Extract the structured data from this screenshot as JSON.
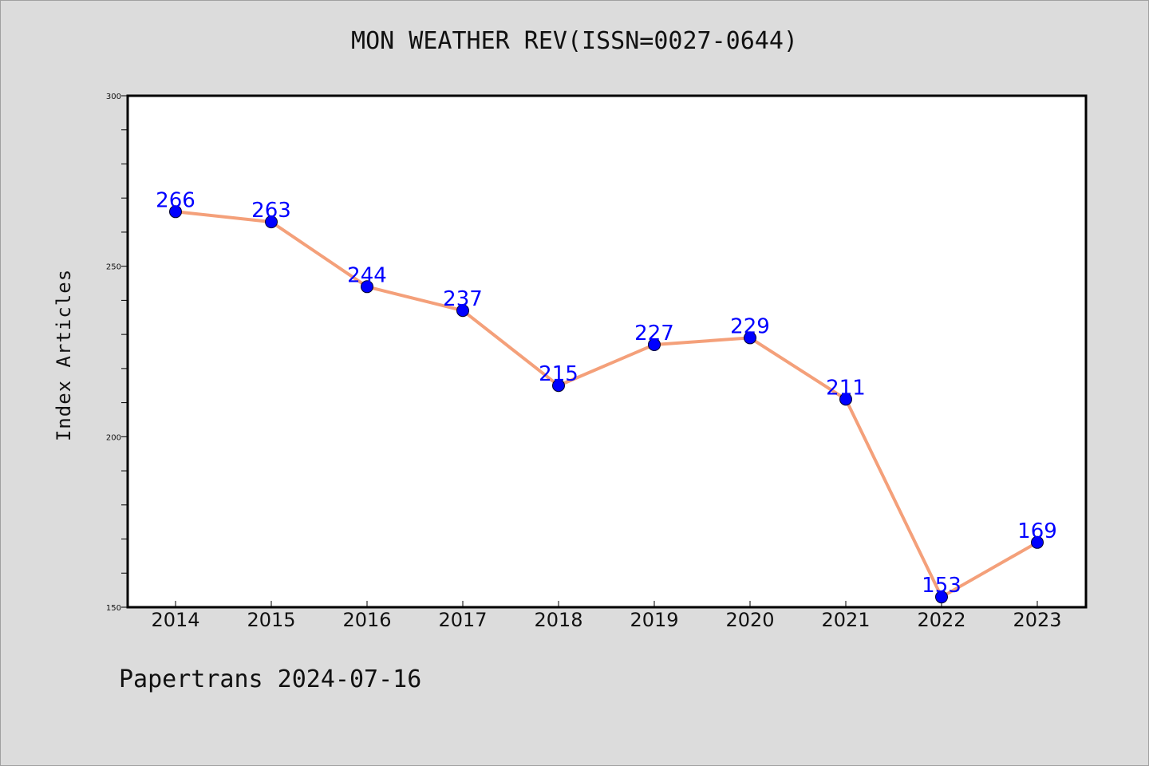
{
  "chart_data": {
    "type": "line",
    "title": "MON WEATHER REV(ISSN=0027-0644)",
    "xlabel": "",
    "ylabel": "Index Articles",
    "categories": [
      "2014",
      "2015",
      "2016",
      "2017",
      "2018",
      "2019",
      "2020",
      "2021",
      "2022",
      "2023"
    ],
    "series": [
      {
        "values": [
          266,
          263,
          244,
          237,
          215,
          227,
          229,
          211,
          153,
          169
        ]
      }
    ],
    "ylim": [
      150,
      300
    ],
    "yticks": [
      150,
      200,
      250,
      300
    ],
    "grid": false,
    "line_color": "#f4a07a",
    "marker_color": "#0000ff",
    "label_color": "#0000ff",
    "plot_background": "#ffffff",
    "page_background": "#dcdcdc"
  },
  "footer": {
    "text": "Papertrans 2024-07-16"
  }
}
